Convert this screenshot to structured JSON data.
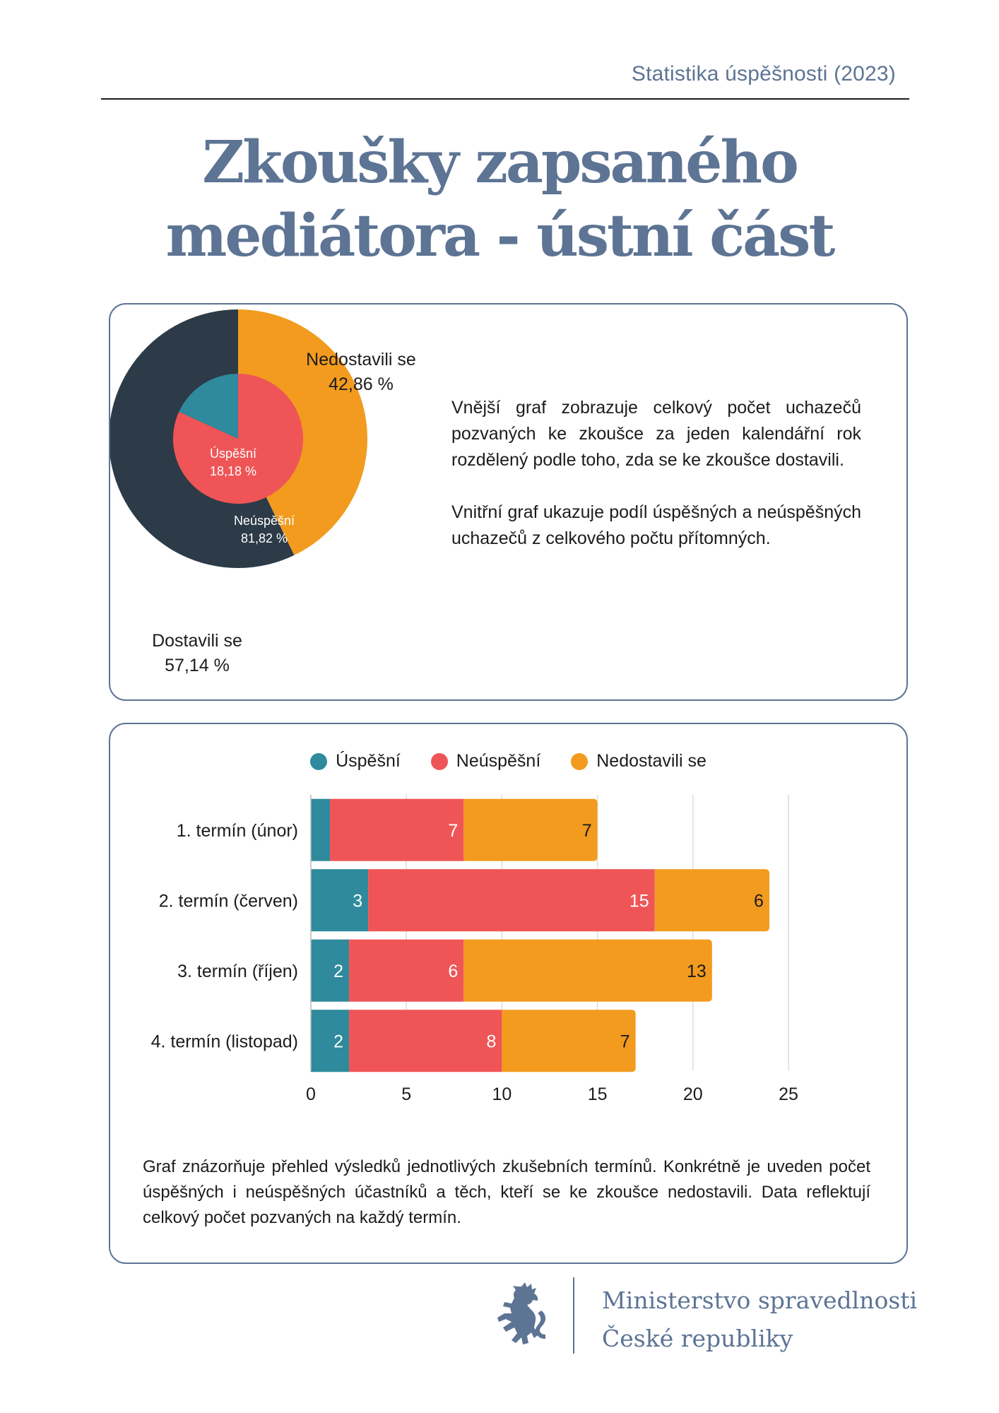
{
  "header": {
    "label": "Statistika úspěšnosti (2023)"
  },
  "title": {
    "line1": "Zkoušky zapsaného",
    "line2": "mediátora - ústní část"
  },
  "colors": {
    "uspesni": "#2e8a9c",
    "neuspesni": "#ef5556",
    "nedostavili": "#f29b1f",
    "dostavili": "#2c3b47",
    "accent": "#5d7494"
  },
  "donut": {
    "outer_labels": [
      {
        "line1": "Nedostavili se",
        "line2": "42,86 %"
      },
      {
        "line1": "Dostavili se",
        "line2": "57,14 %"
      }
    ],
    "inner_labels": [
      {
        "line1": "Úspěšní",
        "line2": "18,18 %"
      },
      {
        "line1": "Neúspěšní",
        "line2": "81,82 %"
      }
    ]
  },
  "description": {
    "p1": "Vnější graf zobrazuje celkový počet uchazečů pozvaných ke zkoušce za jeden kalendářní rok rozdělený podle toho, zda se ke zkoušce dostavili.",
    "p2": "Vnitřní graf ukazuje podíl úspěšných a neúspěšných uchazečů z celkového počtu přítomných."
  },
  "legend": [
    "Úspěšní",
    "Neúspěšní",
    "Nedostavili se"
  ],
  "caption": "Graf znázorňuje přehled výsledků jednotlivých zkušebních termínů. Konkrétně je uveden počet úspěšných i neúspěšných účastníků a těch, kteří se ke zkoušce nedostavili. Data reflektují celkový počet pozvaných na každý termín.",
  "footer": {
    "line1": "Ministerstvo spravedlnosti",
    "line2": "České republiky"
  },
  "chart_data": [
    {
      "type": "pie",
      "ring": "outer",
      "labels": [
        "Nedostavili se",
        "Dostavili se"
      ],
      "values": [
        42.86,
        57.14
      ]
    },
    {
      "type": "pie",
      "ring": "inner",
      "labels": [
        "Úspěšní",
        "Neúspěšní"
      ],
      "values": [
        18.18,
        81.82
      ]
    },
    {
      "type": "bar",
      "orientation": "horizontal",
      "stacked": true,
      "categories": [
        "1. termín (únor)",
        "2. termín (červen)",
        "3. termín (říjen)",
        "4. termín (listopad)"
      ],
      "series": [
        {
          "name": "Úspěšní",
          "values": [
            1,
            3,
            2,
            2
          ],
          "labels": [
            "",
            "3",
            "2",
            "2"
          ]
        },
        {
          "name": "Neúspěšní",
          "values": [
            7,
            15,
            6,
            8
          ],
          "labels": [
            "7",
            "15",
            "6",
            "8"
          ]
        },
        {
          "name": "Nedostavili se",
          "values": [
            7,
            6,
            13,
            7
          ],
          "labels": [
            "7",
            "6",
            "13",
            "7"
          ]
        }
      ],
      "xlim": [
        0,
        25
      ],
      "xticks": [
        0,
        5,
        10,
        15,
        20,
        25
      ],
      "legend_position": "top",
      "grid": true
    }
  ]
}
